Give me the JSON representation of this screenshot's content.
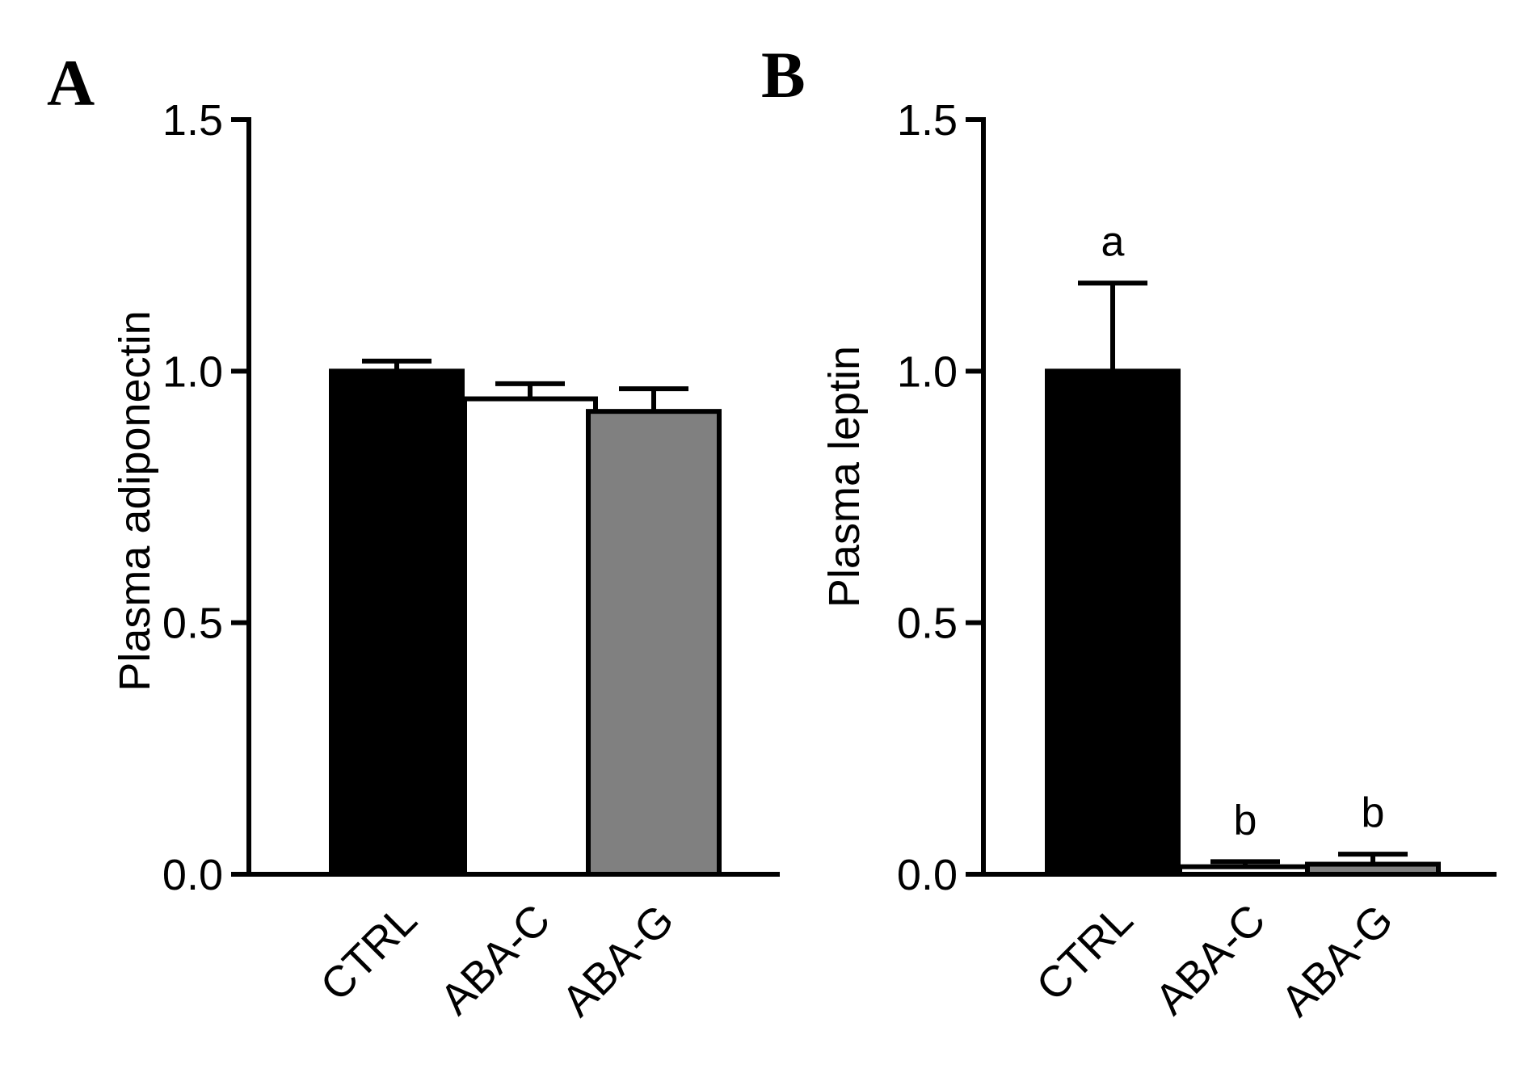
{
  "chart_data": [
    {
      "panel": "A",
      "type": "bar",
      "categories": [
        "CTRL",
        "ABA-C",
        "ABA-G"
      ],
      "values": [
        1.0,
        0.945,
        0.92
      ],
      "errors": [
        0.02,
        0.03,
        0.045
      ],
      "bar_colors": [
        "#000000",
        "#ffffff",
        "#808080"
      ],
      "significance": [],
      "ylabel": "Plasma adiponectin",
      "xlabel": "",
      "ylim": [
        0,
        1.5
      ],
      "yticks": [
        "0.0",
        "0.5",
        "1.0",
        "1.5"
      ]
    },
    {
      "panel": "B",
      "type": "bar",
      "categories": [
        "CTRL",
        "ABA-C",
        "ABA-G"
      ],
      "values": [
        1.0,
        0.015,
        0.02
      ],
      "errors": [
        0.175,
        0.01,
        0.02
      ],
      "bar_colors": [
        "#000000",
        "#ffffff",
        "#808080"
      ],
      "significance": [
        "a",
        "b",
        "b"
      ],
      "ylabel": "Plasma leptin",
      "xlabel": "",
      "ylim": [
        0,
        1.5
      ],
      "yticks": [
        "0.0",
        "0.5",
        "1.0",
        "1.5"
      ]
    }
  ]
}
